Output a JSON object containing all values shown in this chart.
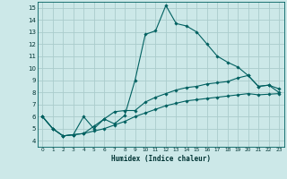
{
  "xlabel": "Humidex (Indice chaleur)",
  "background_color": "#cce8e8",
  "grid_color": "#aacccc",
  "line_color": "#006060",
  "xlim": [
    -0.5,
    23.5
  ],
  "ylim": [
    3.5,
    15.5
  ],
  "xticks": [
    0,
    1,
    2,
    3,
    4,
    5,
    6,
    7,
    8,
    9,
    10,
    11,
    12,
    13,
    14,
    15,
    16,
    17,
    18,
    19,
    20,
    21,
    22,
    23
  ],
  "yticks": [
    4,
    5,
    6,
    7,
    8,
    9,
    10,
    11,
    12,
    13,
    14,
    15
  ],
  "line1_x": [
    0,
    1,
    2,
    3,
    4,
    5,
    6,
    7,
    8,
    9,
    10,
    11,
    12,
    13,
    14,
    15,
    16,
    17,
    18,
    19,
    20,
    21,
    22,
    23
  ],
  "line1_y": [
    6.0,
    5.0,
    4.4,
    4.5,
    4.6,
    5.2,
    5.8,
    5.4,
    6.1,
    9.0,
    12.8,
    13.1,
    15.2,
    13.7,
    13.5,
    13.0,
    12.0,
    11.0,
    10.5,
    10.1,
    9.4,
    8.5,
    8.6,
    8.0
  ],
  "line2_x": [
    0,
    1,
    2,
    3,
    4,
    5,
    6,
    7,
    8,
    9,
    10,
    11,
    12,
    13,
    14,
    15,
    16,
    17,
    18,
    19,
    20,
    21,
    22,
    23
  ],
  "line2_y": [
    6.0,
    5.0,
    4.4,
    4.5,
    6.0,
    5.0,
    5.8,
    6.4,
    6.5,
    6.5,
    7.2,
    7.6,
    7.9,
    8.2,
    8.4,
    8.5,
    8.7,
    8.8,
    8.9,
    9.2,
    9.4,
    8.5,
    8.6,
    8.3
  ],
  "line3_x": [
    0,
    1,
    2,
    3,
    4,
    5,
    6,
    7,
    8,
    9,
    10,
    11,
    12,
    13,
    14,
    15,
    16,
    17,
    18,
    19,
    20,
    21,
    22,
    23
  ],
  "line3_y": [
    6.0,
    5.0,
    4.4,
    4.5,
    4.6,
    4.8,
    5.0,
    5.3,
    5.6,
    6.0,
    6.3,
    6.6,
    6.9,
    7.1,
    7.3,
    7.4,
    7.5,
    7.6,
    7.7,
    7.8,
    7.9,
    7.8,
    7.85,
    7.9
  ]
}
